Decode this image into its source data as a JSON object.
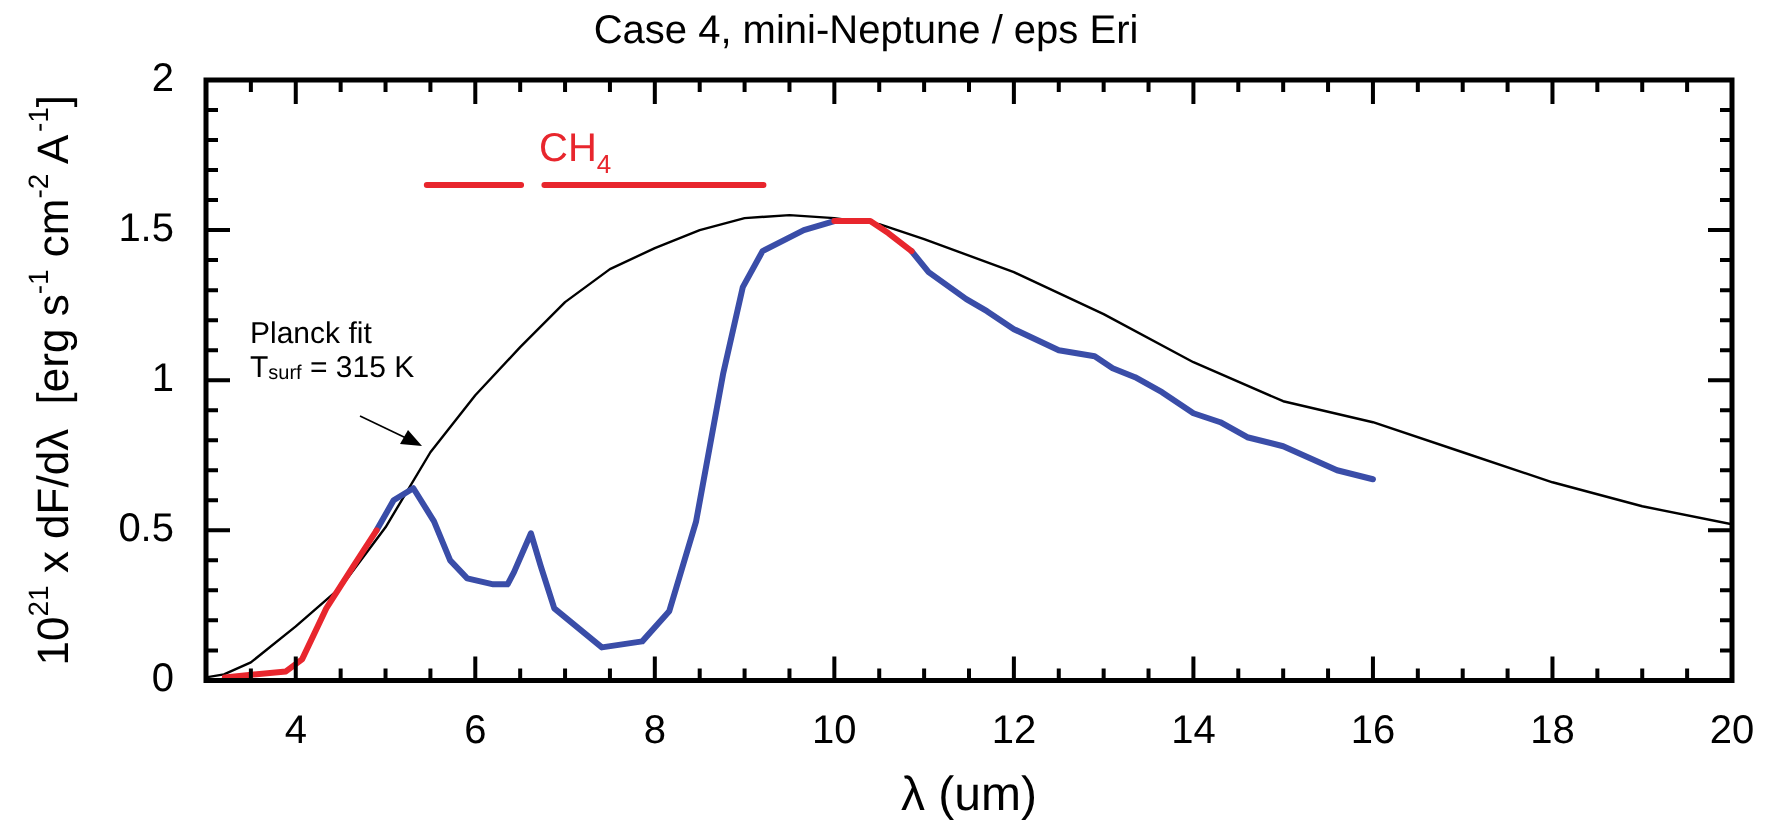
{
  "chart_data": {
    "type": "line",
    "title": "Case 4, mini-Neptune / eps Eri",
    "xlabel": "λ (um)",
    "ylabel": "10$^{21}$ x dF/dλ  [erg s$^{-1}$ cm$^{-2}$ A$^{-1}$]",
    "xlim": [
      3,
      20
    ],
    "ylim": [
      0,
      2
    ],
    "xticks": [
      {
        "value": 3,
        "label": null
      },
      {
        "value": 3.5,
        "label": null
      },
      4,
      {
        "value": 4.5,
        "label": null
      },
      {
        "value": 5,
        "label": null
      },
      {
        "value": 5.5,
        "label": null
      },
      6,
      {
        "value": 6.5,
        "label": null
      },
      {
        "value": 7,
        "label": null
      },
      {
        "value": 7.5,
        "label": null
      },
      8,
      {
        "value": 8.5,
        "label": null
      },
      {
        "value": 9,
        "label": null
      },
      {
        "value": 9.5,
        "label": null
      },
      10,
      {
        "value": 10.5,
        "label": null
      },
      {
        "value": 11,
        "label": null
      },
      {
        "value": 11.5,
        "label": null
      },
      12,
      {
        "value": 12.5,
        "label": null
      },
      {
        "value": 13,
        "label": null
      },
      {
        "value": 13.5,
        "label": null
      },
      14,
      {
        "value": 14.5,
        "label": null
      },
      {
        "value": 15,
        "label": null
      },
      {
        "value": 15.5,
        "label": null
      },
      16,
      {
        "value": 16.5,
        "label": null
      },
      {
        "value": 17,
        "label": null
      },
      {
        "value": 17.5,
        "label": null
      },
      18,
      {
        "value": 18.5,
        "label": null
      },
      {
        "value": 19,
        "label": null
      },
      {
        "value": 19.5,
        "label": null
      },
      20
    ],
    "yticks": [
      0,
      {
        "value": 0.1,
        "label": null
      },
      {
        "value": 0.2,
        "label": null
      },
      {
        "value": 0.3,
        "label": null
      },
      {
        "value": 0.4,
        "label": null
      },
      0.5,
      {
        "value": 0.6,
        "label": null
      },
      {
        "value": 0.7,
        "label": null
      },
      {
        "value": 0.8,
        "label": null
      },
      {
        "value": 0.9,
        "label": null
      },
      1,
      {
        "value": 1.1,
        "label": null
      },
      {
        "value": 1.2,
        "label": null
      },
      {
        "value": 1.3,
        "label": null
      },
      {
        "value": 1.4,
        "label": null
      },
      1.5,
      {
        "value": 1.6,
        "label": null
      },
      {
        "value": 1.7,
        "label": null
      },
      {
        "value": 1.8,
        "label": null
      },
      {
        "value": 1.9,
        "label": null
      },
      2
    ],
    "legend": false,
    "grid": false,
    "marker": "none",
    "annotations": [
      "Planck fit",
      "T$_{surf}$ = 315 K"
    ],
    "series": [
      {
        "color": "#000000",
        "x": [
          3,
          3.2,
          3.5,
          4,
          4.5,
          5,
          5.5,
          6,
          6.5,
          7,
          7.5,
          8,
          8.5,
          9,
          9.5,
          10,
          10.5,
          11,
          12,
          13,
          14,
          15,
          16,
          17,
          18,
          19,
          20
        ],
        "values": [
          0.01,
          0.02,
          0.06,
          0.18,
          0.31,
          0.51,
          0.76,
          0.95,
          1.11,
          1.26,
          1.37,
          1.44,
          1.5,
          1.54,
          1.55,
          1.54,
          1.52,
          1.47,
          1.36,
          1.22,
          1.06,
          0.93,
          0.86,
          0.76,
          0.66,
          0.58,
          0.52
        ]
      },
      {
        "color": "#3a4da8",
        "x": [
          4.9,
          5.09,
          5.31,
          5.54,
          5.72,
          5.91,
          6.2,
          6.36,
          6.43,
          6.62,
          6.73,
          6.88,
          7.41,
          7.86,
          8.16,
          8.46,
          8.76,
          8.98,
          9.2,
          9.66,
          10,
          10.4,
          10.86,
          11.05,
          11.47,
          11.7,
          12,
          12.5,
          12.9,
          13.1,
          13.35,
          13.65,
          14,
          14.3,
          14.6,
          15,
          15.3,
          15.6,
          16
        ],
        "values": [
          0.5,
          0.6,
          0.64,
          0.53,
          0.4,
          0.34,
          0.32,
          0.32,
          0.36,
          0.49,
          0.38,
          0.24,
          0.11,
          0.13,
          0.23,
          0.53,
          1.02,
          1.31,
          1.43,
          1.5,
          1.53,
          null,
          1.43,
          1.36,
          1.27,
          1.23,
          1.17,
          1.1,
          1.08,
          1.04,
          1.01,
          0.96,
          0.89,
          0.86,
          0.81,
          0.78,
          0.74,
          0.7,
          0.67
        ]
      },
      {
        "color": "#e8262d",
        "x": [
          3.21,
          3.89,
          4.07,
          4.34,
          4.64,
          4.9,
          7,
          10,
          10.4,
          10.6,
          10.86
        ],
        "values": [
          0.01,
          0.03,
          0.07,
          0.24,
          0.38,
          0.5,
          null,
          1.53,
          1.53,
          1.49,
          1.43
        ]
      },
      {
        "name": "CH$_{4}$",
        "color": "#e8262d",
        "x": [
          5.46,
          6.51,
          6.64,
          6.77,
          9.21
        ],
        "values": [
          1.65,
          1.65,
          null,
          1.65,
          1.65
        ]
      }
    ]
  }
}
